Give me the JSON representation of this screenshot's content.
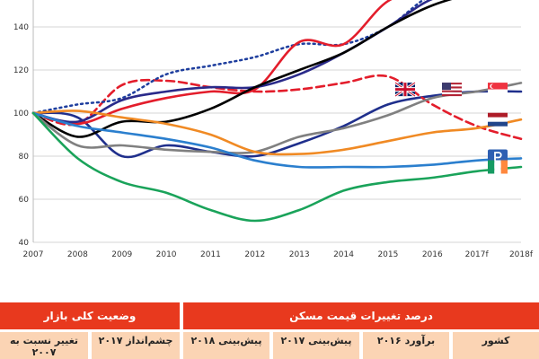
{
  "chart_data": {
    "type": "line",
    "x_labels": [
      "2007",
      "2008",
      "2009",
      "2010",
      "2011",
      "2012",
      "2013",
      "2014",
      "2015",
      "2016",
      "2017f",
      "2018f"
    ],
    "yticks": [
      40,
      60,
      80,
      100,
      120,
      140
    ],
    "ylim": [
      40,
      155
    ],
    "grid": "horizontal",
    "series": [
      {
        "color": "#1f2f8c",
        "style": "solid",
        "values": [
          100,
          98,
          80,
          85,
          82,
          80,
          86,
          94,
          104,
          108,
          110,
          110
        ]
      },
      {
        "color": "#e31d2b",
        "style": "dashed",
        "values": [
          100,
          95,
          113,
          115,
          112,
          110,
          111,
          114,
          117,
          104,
          94,
          88
        ]
      },
      {
        "color": "#1e3e9e",
        "style": "dotted",
        "values": [
          100,
          104,
          107,
          118,
          122,
          126,
          132,
          132,
          140,
          155,
          158,
          160
        ]
      },
      {
        "color": "#e31d2b",
        "style": "solid",
        "values": [
          100,
          95,
          102,
          107,
          110,
          111,
          133,
          132,
          152,
          158,
          157,
          158
        ]
      },
      {
        "color": "#2a2a8a",
        "style": "solid",
        "values": [
          100,
          96,
          106,
          110,
          112,
          112,
          118,
          128,
          140,
          153,
          157,
          158
        ]
      },
      {
        "color": "#000000",
        "style": "solid",
        "values": [
          100,
          89,
          96,
          96,
          102,
          112,
          120,
          128,
          140,
          150,
          156,
          160
        ]
      },
      {
        "color": "#808080",
        "style": "solid",
        "values": [
          100,
          85,
          85,
          83,
          82,
          82,
          89,
          93,
          99,
          107,
          110,
          114
        ]
      },
      {
        "color": "#f08a24",
        "style": "solid",
        "values": [
          100,
          101,
          98,
          95,
          90,
          82,
          81,
          83,
          87,
          91,
          93,
          97
        ]
      },
      {
        "color": "#2b7fce",
        "style": "solid",
        "values": [
          100,
          94,
          91,
          88,
          84,
          78,
          75,
          75,
          75,
          76,
          78,
          79
        ]
      },
      {
        "color": "#1aa35a",
        "style": "solid",
        "values": [
          100,
          79,
          68,
          63,
          55,
          50,
          55,
          64,
          68,
          70,
          73,
          75
        ]
      }
    ],
    "flags": [
      {
        "country": "united-kingdom",
        "y": 111
      },
      {
        "country": "united-states",
        "y": 111
      },
      {
        "country": "singapore",
        "y": 111
      },
      {
        "country": "netherlands",
        "y": 97
      },
      {
        "country": "portugal",
        "y": 80
      },
      {
        "country": "ireland",
        "y": 75
      }
    ]
  },
  "table": {
    "header_market": "وضعیت کلی بازار",
    "header_change": "درصد تغییرات قیمت مسکن",
    "col_country": "کشور",
    "col_est2016": "برآورد ۲۰۱۶",
    "col_fc2017": "پیش‌بینی ۲۰۱۷",
    "col_fc2018": "پیش‌بینی ۲۰۱۸",
    "col_outlook2017": "چشم‌انداز ۲۰۱۷",
    "col_change_vs": "تغییر نسبت به ۲۰۰۷"
  }
}
